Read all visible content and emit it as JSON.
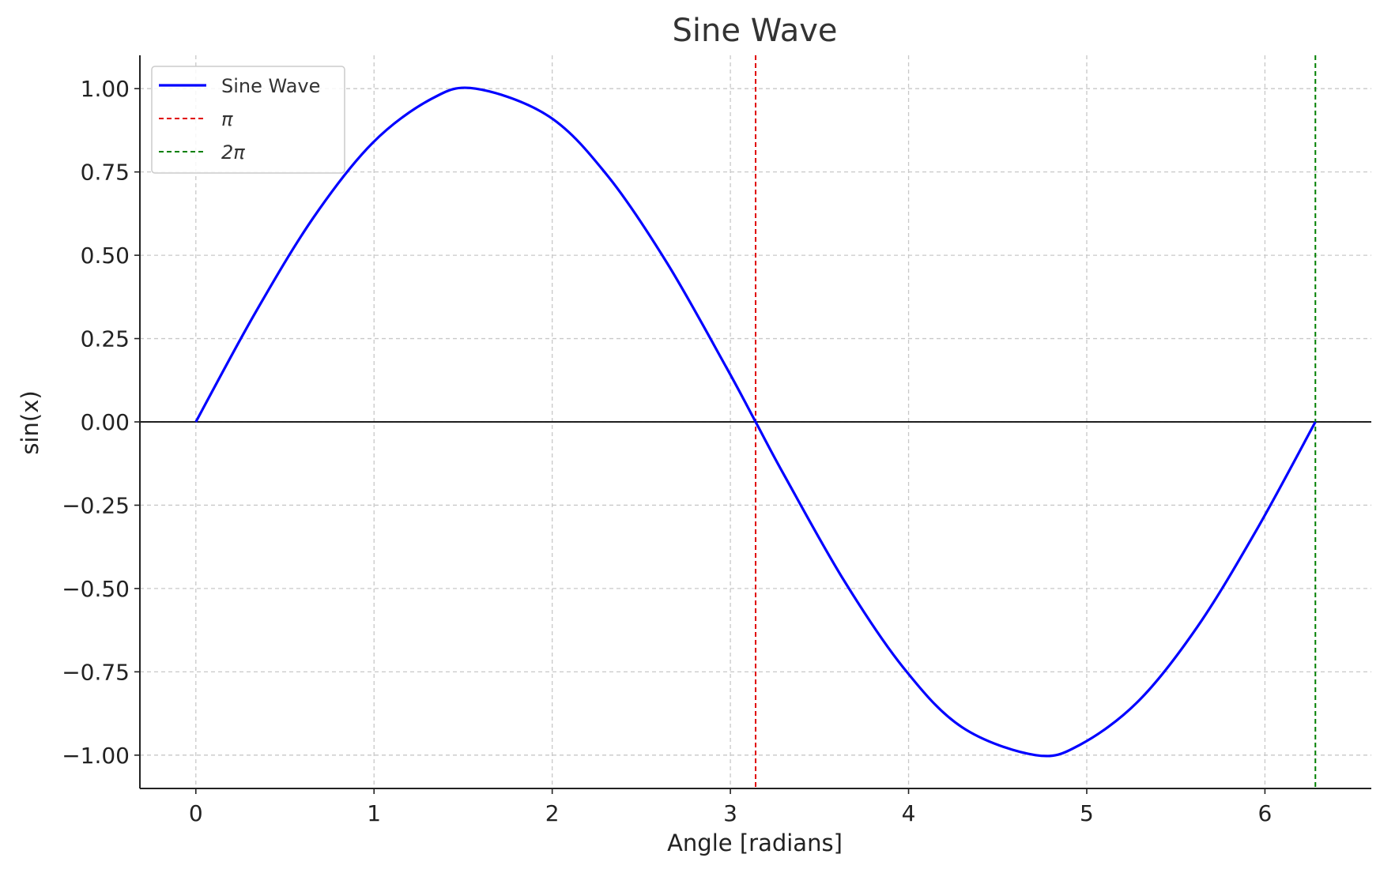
{
  "chart_data": {
    "type": "line",
    "title": "Sine Wave",
    "xlabel": "Angle [radians]",
    "ylabel": "sin(x)",
    "xlim": [
      -0.314,
      6.597
    ],
    "ylim": [
      -1.1,
      1.1
    ],
    "x_ticks": [
      0,
      1,
      2,
      3,
      4,
      5,
      6
    ],
    "x_tick_labels": [
      "0",
      "1",
      "2",
      "3",
      "4",
      "5",
      "6"
    ],
    "y_ticks": [
      1.0,
      0.75,
      0.5,
      0.25,
      0.0,
      -0.25,
      -0.5,
      -0.75,
      -1.0
    ],
    "y_tick_labels": [
      "1.00",
      "0.75",
      "0.50",
      "0.25",
      "0.00",
      "−0.25",
      "−0.50",
      "−0.75",
      "−1.00"
    ],
    "grid": true,
    "legend_position": "top-left",
    "series": [
      {
        "name": "Sine Wave",
        "color": "#0000ff",
        "style": "solid",
        "x": [
          0,
          0.3307,
          0.6614,
          0.9921,
          1.3228,
          1.5708,
          1.9842,
          2.3149,
          2.6456,
          2.9762,
          3.1416,
          3.3069,
          3.6376,
          3.9683,
          4.299,
          4.7124,
          4.9604,
          5.2911,
          5.6218,
          5.9525,
          6.2832
        ],
        "y": [
          0,
          0.3247,
          0.6142,
          0.8372,
          0.9694,
          1.0,
          0.9158,
          0.7357,
          0.4759,
          0.1646,
          0,
          -0.1646,
          -0.4759,
          -0.7357,
          -0.9158,
          -1.0,
          -0.9694,
          -0.8372,
          -0.6142,
          -0.3247,
          0
        ]
      }
    ],
    "vertical_lines": [
      {
        "name": "π",
        "x": 3.1416,
        "color": "#e00000",
        "style": "dashed"
      },
      {
        "name": "2π",
        "x": 6.2832,
        "color": "#008000",
        "style": "dashed"
      }
    ],
    "reference_line": {
      "y": 0,
      "color": "#000000"
    }
  }
}
